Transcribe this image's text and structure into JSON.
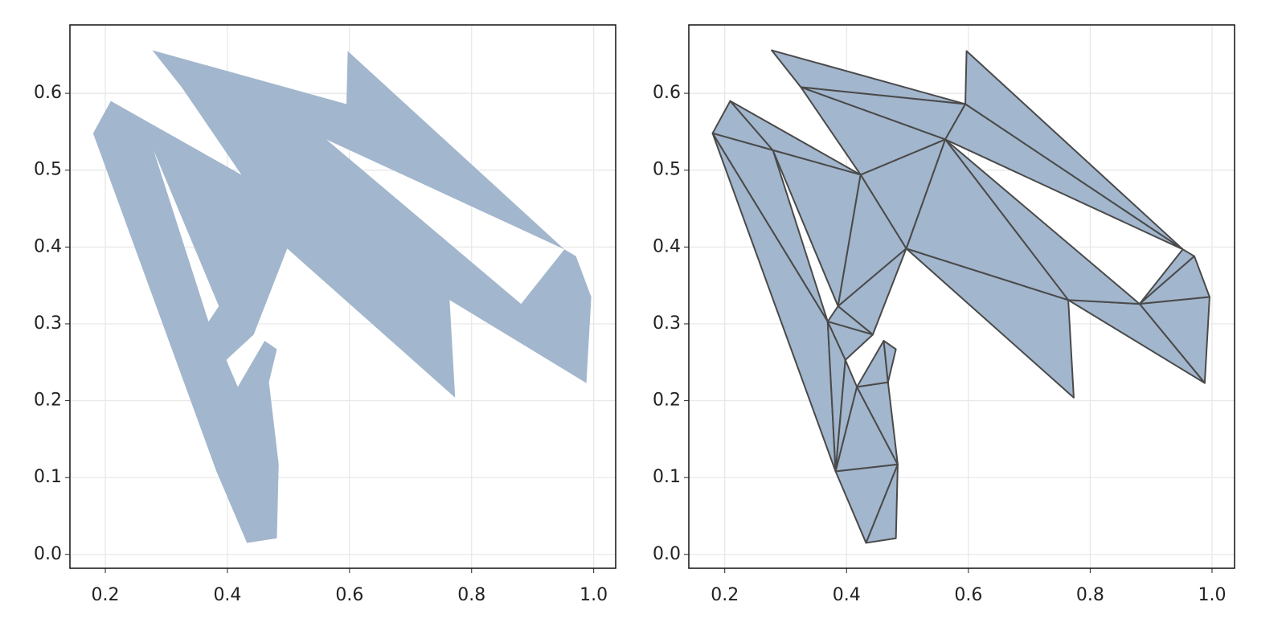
{
  "chart_data": [
    {
      "type": "polygon",
      "color": "#a2b6cd",
      "grid": true,
      "xlim": [
        0.142,
        1.036
      ],
      "ylim": [
        -0.018,
        0.689
      ],
      "xticks": [
        0.2,
        0.4,
        0.6,
        0.8,
        {
          "value": 1.0,
          "label": "1.0"
        }
      ],
      "yticks": [
        {
          "value": 0.0,
          "label": "0.0"
        },
        0.1,
        0.2,
        0.3,
        0.4,
        0.5,
        0.6
      ],
      "rings": [
        {
          "x": [
            0.277,
            0.595,
            0.597,
            0.952,
            0.971,
            0.996,
            0.988,
            0.764,
            0.773,
            0.498,
            0.443,
            0.398,
            0.417,
            0.461,
            0.481,
            0.468,
            0.484,
            0.481,
            0.432,
            0.382,
            0.18,
            0.209,
            0.423,
            0.325
          ],
          "y": [
            0.656,
            0.586,
            0.655,
            0.397,
            0.388,
            0.335,
            0.223,
            0.331,
            0.204,
            0.398,
            0.286,
            0.253,
            0.218,
            0.278,
            0.267,
            0.224,
            0.117,
            0.021,
            0.015,
            0.108,
            0.548,
            0.59,
            0.494,
            0.608
          ]
        },
        {
          "x": [
            0.562,
            0.952,
            0.881
          ],
          "y": [
            0.54,
            0.397,
            0.326
          ]
        },
        {
          "x": [
            0.279,
            0.386,
            0.369
          ],
          "y": [
            0.526,
            0.323,
            0.303
          ]
        }
      ]
    },
    {
      "type": "triangulation",
      "color": "#a2b6cd",
      "edge_color": "#4a4a4a",
      "grid": true,
      "xlim": [
        0.141,
        1.037
      ],
      "ylim": [
        -0.018,
        0.689
      ],
      "xticks": [
        0.2,
        0.4,
        0.6,
        0.8,
        {
          "value": 1.0,
          "label": "1.0"
        }
      ],
      "yticks": [
        {
          "value": 0.0,
          "label": "0.0"
        },
        0.1,
        0.2,
        0.3,
        0.4,
        0.5,
        0.6
      ],
      "x": [
        0.277,
        0.325,
        0.595,
        0.597,
        0.952,
        0.971,
        0.996,
        0.988,
        0.881,
        0.764,
        0.773,
        0.498,
        0.443,
        0.398,
        0.417,
        0.461,
        0.481,
        0.468,
        0.484,
        0.481,
        0.432,
        0.382,
        0.18,
        0.209,
        0.423,
        0.279,
        0.369,
        0.386,
        0.562
      ],
      "y": [
        0.656,
        0.608,
        0.586,
        0.655,
        0.397,
        0.388,
        0.335,
        0.223,
        0.326,
        0.331,
        0.204,
        0.398,
        0.286,
        0.253,
        0.218,
        0.278,
        0.267,
        0.224,
        0.117,
        0.021,
        0.015,
        0.108,
        0.548,
        0.59,
        0.494,
        0.526,
        0.303,
        0.323,
        0.54
      ],
      "triangles": [
        [
          0,
          1,
          2
        ],
        [
          1,
          2,
          28
        ],
        [
          2,
          3,
          4
        ],
        [
          2,
          28,
          4
        ],
        [
          4,
          5,
          8
        ],
        [
          5,
          6,
          8
        ],
        [
          6,
          7,
          8
        ],
        [
          7,
          8,
          9
        ],
        [
          8,
          9,
          28
        ],
        [
          9,
          10,
          11
        ],
        [
          28,
          9,
          11
        ],
        [
          28,
          11,
          24
        ],
        [
          1,
          28,
          24
        ],
        [
          22,
          23,
          25
        ],
        [
          23,
          25,
          24
        ],
        [
          22,
          25,
          26
        ],
        [
          22,
          26,
          21
        ],
        [
          25,
          24,
          27
        ],
        [
          24,
          27,
          11
        ],
        [
          27,
          11,
          12
        ],
        [
          26,
          27,
          12
        ],
        [
          26,
          12,
          13
        ],
        [
          26,
          13,
          21
        ],
        [
          13,
          21,
          14
        ],
        [
          21,
          14,
          18
        ],
        [
          14,
          17,
          18
        ],
        [
          14,
          15,
          17
        ],
        [
          15,
          16,
          17
        ],
        [
          21,
          18,
          20
        ],
        [
          18,
          20,
          19
        ]
      ]
    }
  ]
}
